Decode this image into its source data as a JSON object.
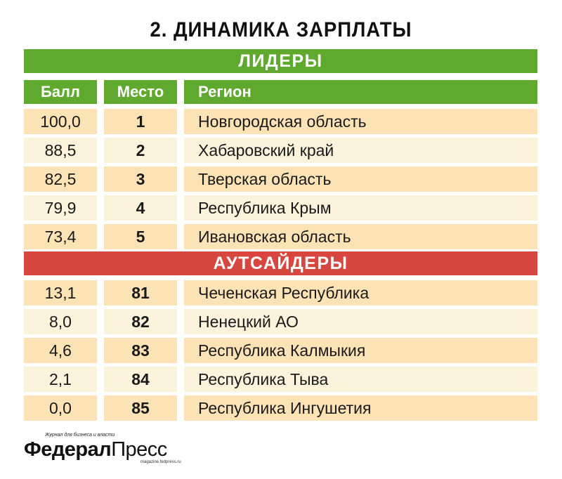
{
  "title": "2. ДИНАМИКА ЗАРПЛАТЫ",
  "leaders_label": "ЛИДЕРЫ",
  "outsiders_label": "АУТСАЙДЕРЫ",
  "chart_data": {
    "type": "table",
    "title": "2. ДИНАМИКА ЗАРПЛАТЫ",
    "columns": [
      "Балл",
      "Место",
      "Регион"
    ],
    "groups": [
      {
        "name": "ЛИДЕРЫ",
        "color": "#5faa2e",
        "rows": [
          {
            "score": "100,0",
            "place": "1",
            "region": "Новгородская область"
          },
          {
            "score": "88,5",
            "place": "2",
            "region": "Хабаровский край"
          },
          {
            "score": "82,5",
            "place": "3",
            "region": "Тверская область"
          },
          {
            "score": "79,9",
            "place": "4",
            "region": "Республика Крым"
          },
          {
            "score": "73,4",
            "place": "5",
            "region": "Ивановская область"
          }
        ]
      },
      {
        "name": "АУТСАЙДЕРЫ",
        "color": "#d8473f",
        "rows": [
          {
            "score": "13,1",
            "place": "81",
            "region": "Чеченская Республика"
          },
          {
            "score": "8,0",
            "place": "82",
            "region": "Ненецкий АО"
          },
          {
            "score": "4,6",
            "place": "83",
            "region": "Республика Калмыкия"
          },
          {
            "score": "2,1",
            "place": "84",
            "region": "Республика Тыва"
          },
          {
            "score": "0,0",
            "place": "85",
            "region": "Республика Ингушетия"
          }
        ]
      }
    ]
  },
  "logo": {
    "tagline": "Журнал для бизнеса и власти",
    "name_bold": "Федерал",
    "name_regular": "Пресс",
    "url": "magazine.fedpress.ru"
  }
}
